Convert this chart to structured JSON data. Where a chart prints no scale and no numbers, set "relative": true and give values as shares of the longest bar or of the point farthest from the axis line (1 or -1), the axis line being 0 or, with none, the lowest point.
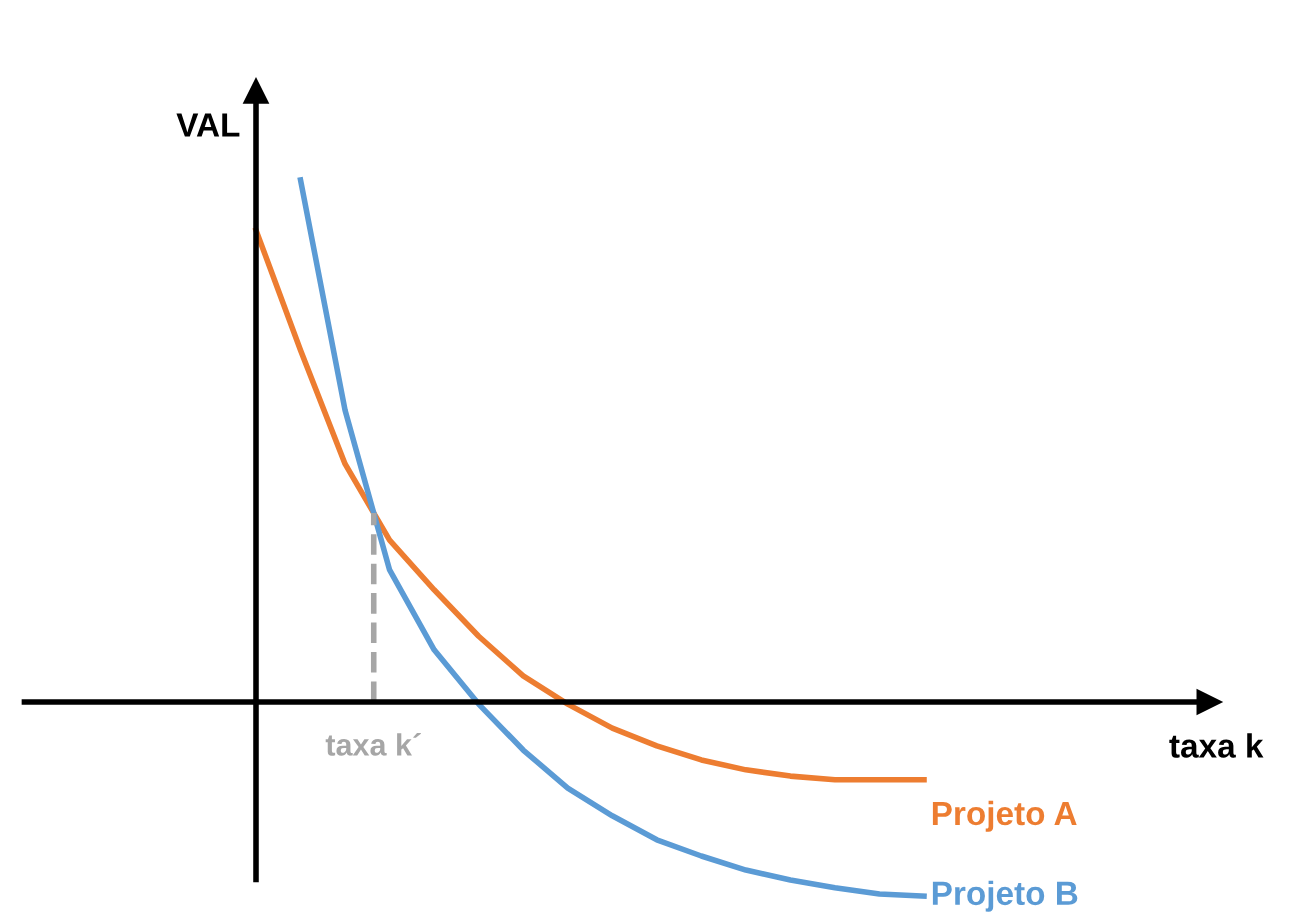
{
  "chart_data": {
    "type": "line",
    "relative": true,
    "ylabel": "VAL",
    "categories": [
      null,
      null,
      null,
      null,
      null,
      null,
      null,
      null,
      null,
      null,
      null,
      null,
      null,
      null,
      null,
      null
    ],
    "series": [
      {
        "name": "Projeto A",
        "color": "#ed7d31",
        "values": [
          0.904,
          0.674,
          0.456,
          0.31,
          0.215,
          0.126,
          0.05,
          -0.004,
          -0.05,
          -0.084,
          -0.111,
          -0.13,
          -0.142,
          -0.149,
          -0.149,
          -0.149
        ]
      },
      {
        "name": "Projeto B",
        "color": "#5b9bd5",
        "values": [
          null,
          1,
          0.559,
          0.253,
          0.1,
          -0.004,
          -0.092,
          -0.165,
          -0.218,
          -0.264,
          -0.295,
          -0.322,
          -0.341,
          -0.356,
          -0.368,
          -0.372
        ]
      }
    ],
    "annotations": [
      "taxa k´",
      "taxa k"
    ],
    "legend": false,
    "marker": "none",
    "line_style": "solid"
  }
}
